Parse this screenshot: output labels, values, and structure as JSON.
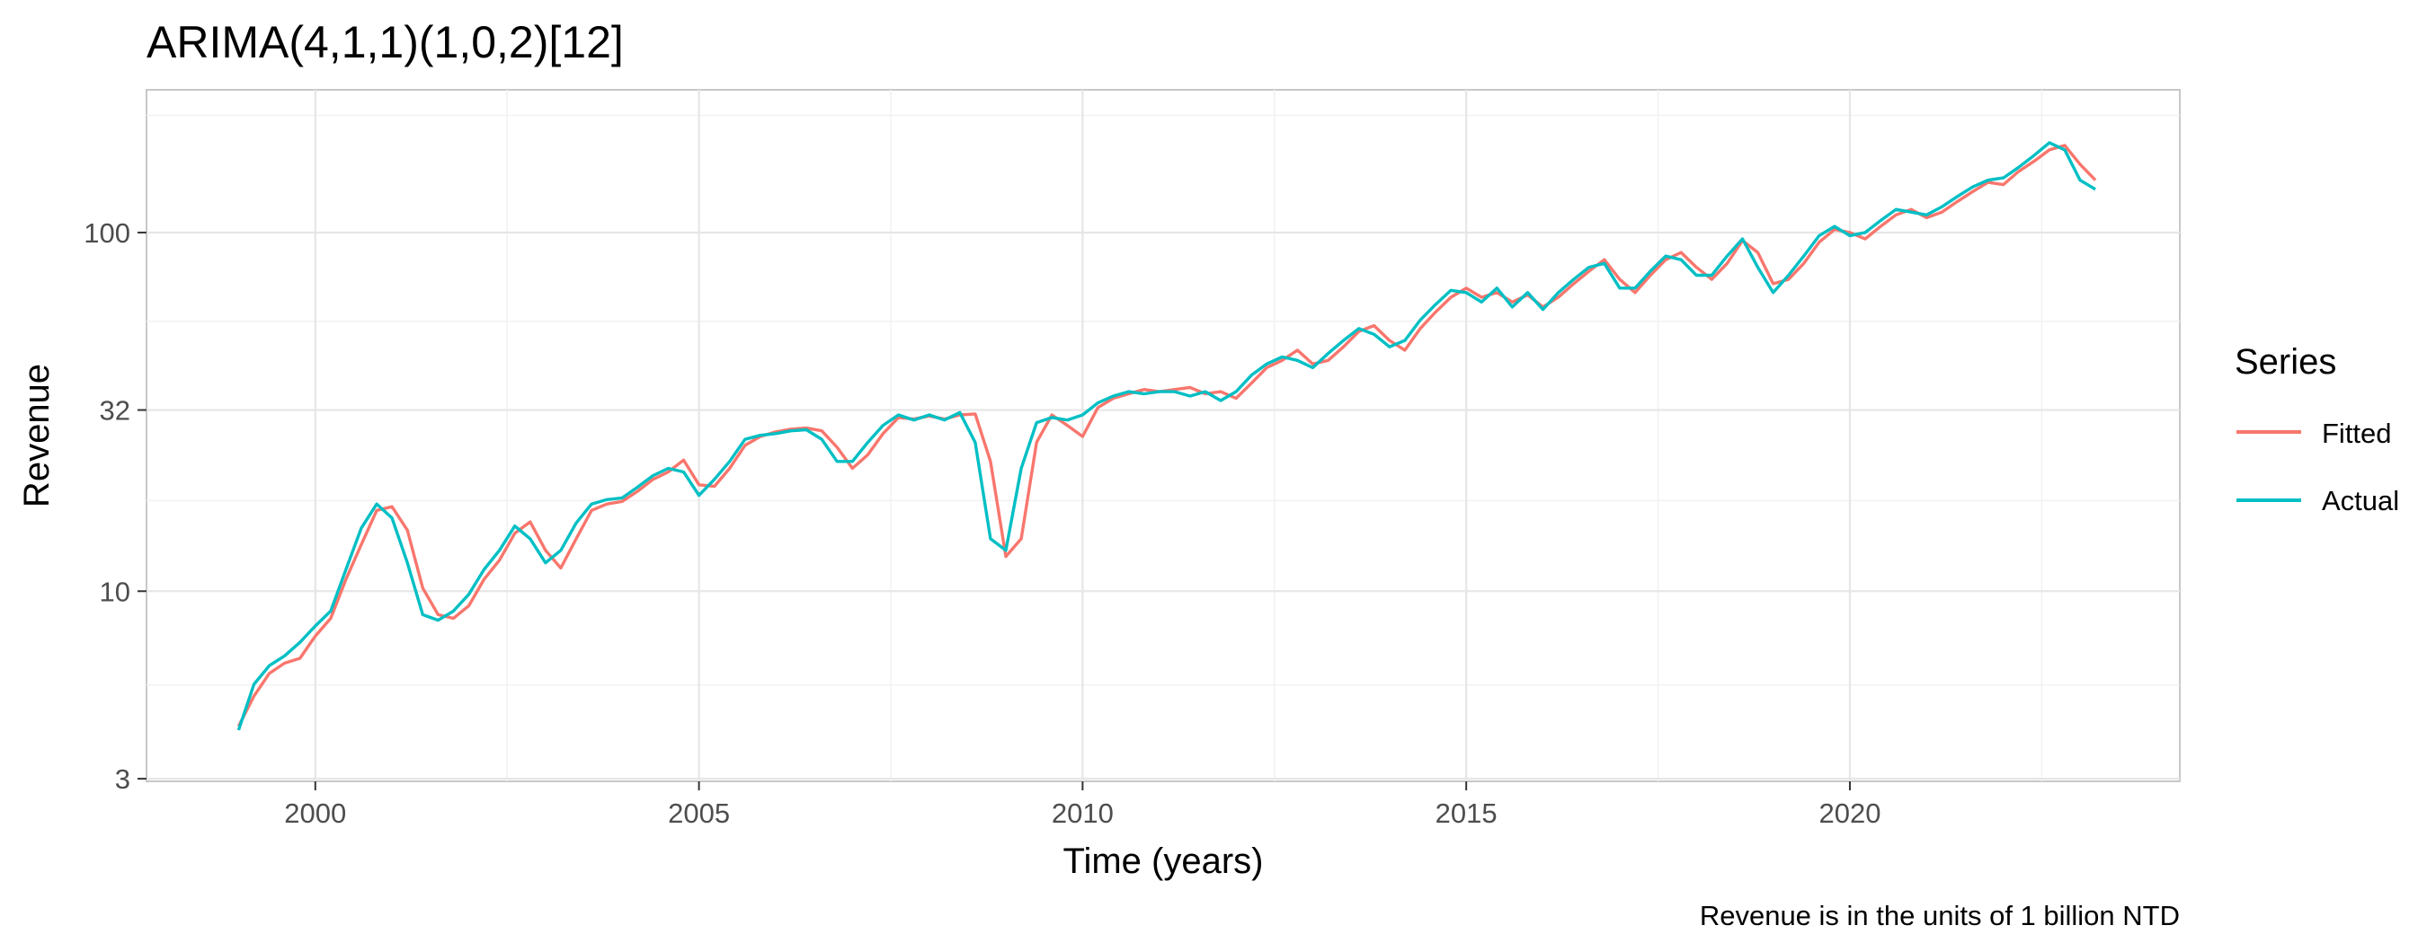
{
  "chart_data": {
    "type": "line",
    "title": "ARIMA(4,1,1)(1,0,2)[12]",
    "xlabel": "Time (years)",
    "ylabel": "Revenue",
    "caption": "Revenue is in the units of 1 billion NTD",
    "x_scale": "linear",
    "y_scale": "log10",
    "xlim": [
      1997.8,
      2024.3
    ],
    "ylim": [
      2.95,
      250
    ],
    "x_ticks": [
      2000,
      2005,
      2010,
      2015,
      2020
    ],
    "x_tick_labels": [
      "2000",
      "2005",
      "2010",
      "2015",
      "2020"
    ],
    "y_ticks": [
      3,
      10,
      32,
      100
    ],
    "y_tick_labels": [
      "3",
      "10",
      "32",
      "100"
    ],
    "grid": true,
    "legend": {
      "title": "Series",
      "position": "right"
    },
    "series": [
      {
        "name": "Fitted",
        "color": "#F8766D",
        "points": [
          [
            1999.0,
            4.2
          ],
          [
            1999.2,
            5.1
          ],
          [
            1999.4,
            5.9
          ],
          [
            1999.6,
            6.3
          ],
          [
            1999.8,
            6.5
          ],
          [
            2000.0,
            7.5
          ],
          [
            2000.2,
            8.4
          ],
          [
            2000.4,
            10.8
          ],
          [
            2000.6,
            13.5
          ],
          [
            2000.8,
            16.8
          ],
          [
            2001.0,
            17.2
          ],
          [
            2001.2,
            14.8
          ],
          [
            2001.4,
            10.2
          ],
          [
            2001.6,
            8.6
          ],
          [
            2001.8,
            8.4
          ],
          [
            2002.0,
            9.1
          ],
          [
            2002.2,
            10.8
          ],
          [
            2002.4,
            12.2
          ],
          [
            2002.6,
            14.5
          ],
          [
            2002.8,
            15.6
          ],
          [
            2003.0,
            13.0
          ],
          [
            2003.2,
            11.6
          ],
          [
            2003.4,
            14.0
          ],
          [
            2003.6,
            16.8
          ],
          [
            2003.8,
            17.5
          ],
          [
            2004.0,
            17.8
          ],
          [
            2004.2,
            19.0
          ],
          [
            2004.4,
            20.5
          ],
          [
            2004.6,
            21.5
          ],
          [
            2004.8,
            23.2
          ],
          [
            2005.0,
            19.8
          ],
          [
            2005.2,
            19.6
          ],
          [
            2005.4,
            22.0
          ],
          [
            2005.6,
            25.5
          ],
          [
            2005.8,
            27.0
          ],
          [
            2006.0,
            27.8
          ],
          [
            2006.2,
            28.3
          ],
          [
            2006.4,
            28.5
          ],
          [
            2006.6,
            28.0
          ],
          [
            2006.8,
            25.2
          ],
          [
            2007.0,
            22.0
          ],
          [
            2007.2,
            24.0
          ],
          [
            2007.4,
            27.5
          ],
          [
            2007.6,
            30.5
          ],
          [
            2007.8,
            30.2
          ],
          [
            2008.0,
            30.8
          ],
          [
            2008.2,
            30.2
          ],
          [
            2008.4,
            31.0
          ],
          [
            2008.6,
            31.2
          ],
          [
            2008.8,
            23.0
          ],
          [
            2009.0,
            12.5
          ],
          [
            2009.2,
            14.0
          ],
          [
            2009.4,
            26.0
          ],
          [
            2009.6,
            31.0
          ],
          [
            2009.8,
            29.0
          ],
          [
            2010.0,
            27.0
          ],
          [
            2010.2,
            32.5
          ],
          [
            2010.4,
            34.5
          ],
          [
            2010.6,
            35.5
          ],
          [
            2010.8,
            36.5
          ],
          [
            2011.0,
            36.0
          ],
          [
            2011.2,
            36.5
          ],
          [
            2011.4,
            37.0
          ],
          [
            2011.6,
            35.5
          ],
          [
            2011.8,
            36.0
          ],
          [
            2012.0,
            34.5
          ],
          [
            2012.2,
            38.0
          ],
          [
            2012.4,
            42.0
          ],
          [
            2012.6,
            44.0
          ],
          [
            2012.8,
            47.0
          ],
          [
            2013.0,
            43.0
          ],
          [
            2013.2,
            44.0
          ],
          [
            2013.4,
            48.0
          ],
          [
            2013.6,
            53.0
          ],
          [
            2013.8,
            55.0
          ],
          [
            2014.0,
            50.0
          ],
          [
            2014.2,
            47.0
          ],
          [
            2014.4,
            54.0
          ],
          [
            2014.6,
            60.0
          ],
          [
            2014.8,
            66.0
          ],
          [
            2015.0,
            70.0
          ],
          [
            2015.2,
            66.0
          ],
          [
            2015.4,
            68.0
          ],
          [
            2015.6,
            64.0
          ],
          [
            2015.8,
            67.0
          ],
          [
            2016.0,
            62.0
          ],
          [
            2016.2,
            66.0
          ],
          [
            2016.4,
            72.0
          ],
          [
            2016.6,
            78.0
          ],
          [
            2016.8,
            84.0
          ],
          [
            2017.0,
            74.0
          ],
          [
            2017.2,
            68.0
          ],
          [
            2017.4,
            76.0
          ],
          [
            2017.6,
            84.0
          ],
          [
            2017.8,
            88.0
          ],
          [
            2018.0,
            80.0
          ],
          [
            2018.2,
            74.0
          ],
          [
            2018.4,
            82.0
          ],
          [
            2018.6,
            95.0
          ],
          [
            2018.8,
            88.0
          ],
          [
            2019.0,
            72.0
          ],
          [
            2019.2,
            74.0
          ],
          [
            2019.4,
            82.0
          ],
          [
            2019.6,
            94.0
          ],
          [
            2019.8,
            102.0
          ],
          [
            2020.0,
            100.0
          ],
          [
            2020.2,
            96.0
          ],
          [
            2020.4,
            104.0
          ],
          [
            2020.6,
            112.0
          ],
          [
            2020.8,
            116.0
          ],
          [
            2021.0,
            110.0
          ],
          [
            2021.2,
            114.0
          ],
          [
            2021.4,
            122.0
          ],
          [
            2021.6,
            130.0
          ],
          [
            2021.8,
            138.0
          ],
          [
            2022.0,
            136.0
          ],
          [
            2022.2,
            148.0
          ],
          [
            2022.4,
            158.0
          ],
          [
            2022.6,
            170.0
          ],
          [
            2022.8,
            175.0
          ],
          [
            2023.0,
            155.0
          ],
          [
            2023.2,
            140.0
          ]
        ]
      },
      {
        "name": "Actual",
        "color": "#00BFC4",
        "points": [
          [
            1999.0,
            4.1
          ],
          [
            1999.2,
            5.5
          ],
          [
            1999.4,
            6.2
          ],
          [
            1999.6,
            6.6
          ],
          [
            1999.8,
            7.2
          ],
          [
            2000.0,
            8.0
          ],
          [
            2000.2,
            8.8
          ],
          [
            2000.4,
            11.5
          ],
          [
            2000.6,
            15.0
          ],
          [
            2000.8,
            17.5
          ],
          [
            2001.0,
            16.0
          ],
          [
            2001.2,
            12.0
          ],
          [
            2001.4,
            8.6
          ],
          [
            2001.6,
            8.3
          ],
          [
            2001.8,
            8.8
          ],
          [
            2002.0,
            9.8
          ],
          [
            2002.2,
            11.5
          ],
          [
            2002.4,
            13.0
          ],
          [
            2002.6,
            15.2
          ],
          [
            2002.8,
            14.0
          ],
          [
            2003.0,
            12.0
          ],
          [
            2003.2,
            13.0
          ],
          [
            2003.4,
            15.5
          ],
          [
            2003.6,
            17.5
          ],
          [
            2003.8,
            18.0
          ],
          [
            2004.0,
            18.2
          ],
          [
            2004.2,
            19.5
          ],
          [
            2004.4,
            21.0
          ],
          [
            2004.6,
            22.0
          ],
          [
            2004.8,
            21.5
          ],
          [
            2005.0,
            18.5
          ],
          [
            2005.2,
            20.5
          ],
          [
            2005.4,
            23.0
          ],
          [
            2005.6,
            26.5
          ],
          [
            2005.8,
            27.2
          ],
          [
            2006.0,
            27.5
          ],
          [
            2006.2,
            28.0
          ],
          [
            2006.4,
            28.2
          ],
          [
            2006.6,
            26.5
          ],
          [
            2006.8,
            23.0
          ],
          [
            2007.0,
            23.0
          ],
          [
            2007.2,
            26.0
          ],
          [
            2007.4,
            29.0
          ],
          [
            2007.6,
            31.0
          ],
          [
            2007.8,
            30.0
          ],
          [
            2008.0,
            31.0
          ],
          [
            2008.2,
            30.0
          ],
          [
            2008.4,
            31.5
          ],
          [
            2008.6,
            26.0
          ],
          [
            2008.8,
            14.0
          ],
          [
            2009.0,
            13.0
          ],
          [
            2009.2,
            22.0
          ],
          [
            2009.4,
            29.5
          ],
          [
            2009.6,
            30.5
          ],
          [
            2009.8,
            30.0
          ],
          [
            2010.0,
            31.0
          ],
          [
            2010.2,
            33.5
          ],
          [
            2010.4,
            35.0
          ],
          [
            2010.6,
            36.0
          ],
          [
            2010.8,
            35.5
          ],
          [
            2011.0,
            36.0
          ],
          [
            2011.2,
            36.0
          ],
          [
            2011.4,
            35.0
          ],
          [
            2011.6,
            36.0
          ],
          [
            2011.8,
            34.0
          ],
          [
            2012.0,
            36.0
          ],
          [
            2012.2,
            40.0
          ],
          [
            2012.4,
            43.0
          ],
          [
            2012.6,
            45.0
          ],
          [
            2012.8,
            44.0
          ],
          [
            2013.0,
            42.0
          ],
          [
            2013.2,
            46.0
          ],
          [
            2013.4,
            50.0
          ],
          [
            2013.6,
            54.0
          ],
          [
            2013.8,
            52.0
          ],
          [
            2014.0,
            48.0
          ],
          [
            2014.2,
            50.0
          ],
          [
            2014.4,
            57.0
          ],
          [
            2014.6,
            63.0
          ],
          [
            2014.8,
            69.0
          ],
          [
            2015.0,
            68.0
          ],
          [
            2015.2,
            64.0
          ],
          [
            2015.4,
            70.0
          ],
          [
            2015.6,
            62.0
          ],
          [
            2015.8,
            68.0
          ],
          [
            2016.0,
            61.0
          ],
          [
            2016.2,
            68.0
          ],
          [
            2016.4,
            74.0
          ],
          [
            2016.6,
            80.0
          ],
          [
            2016.8,
            82.0
          ],
          [
            2017.0,
            70.0
          ],
          [
            2017.2,
            70.0
          ],
          [
            2017.4,
            78.0
          ],
          [
            2017.6,
            86.0
          ],
          [
            2017.8,
            84.0
          ],
          [
            2018.0,
            76.0
          ],
          [
            2018.2,
            76.0
          ],
          [
            2018.4,
            86.0
          ],
          [
            2018.6,
            96.0
          ],
          [
            2018.8,
            80.0
          ],
          [
            2019.0,
            68.0
          ],
          [
            2019.2,
            76.0
          ],
          [
            2019.4,
            86.0
          ],
          [
            2019.6,
            98.0
          ],
          [
            2019.8,
            104.0
          ],
          [
            2020.0,
            98.0
          ],
          [
            2020.2,
            100.0
          ],
          [
            2020.4,
            108.0
          ],
          [
            2020.6,
            116.0
          ],
          [
            2020.8,
            114.0
          ],
          [
            2021.0,
            112.0
          ],
          [
            2021.2,
            118.0
          ],
          [
            2021.4,
            126.0
          ],
          [
            2021.6,
            134.0
          ],
          [
            2021.8,
            140.0
          ],
          [
            2022.0,
            142.0
          ],
          [
            2022.2,
            152.0
          ],
          [
            2022.4,
            164.0
          ],
          [
            2022.6,
            178.0
          ],
          [
            2022.8,
            170.0
          ],
          [
            2023.0,
            140.0
          ],
          [
            2023.2,
            132.0
          ]
        ]
      }
    ]
  }
}
